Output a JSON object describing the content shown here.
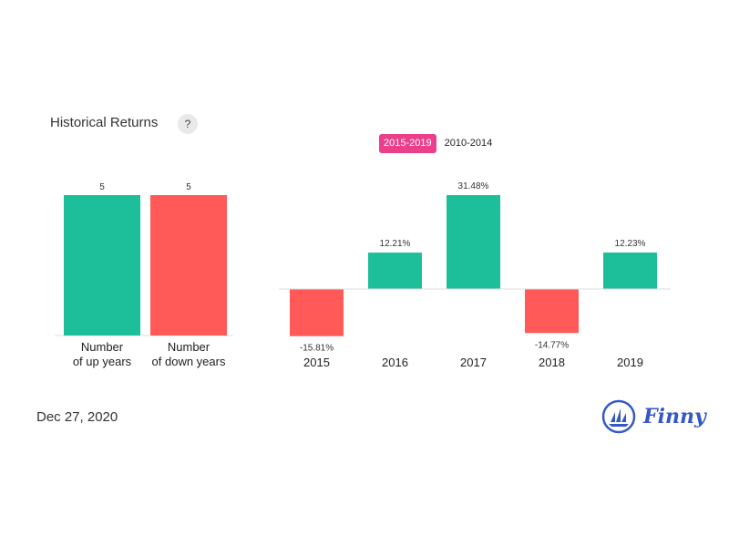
{
  "header": {
    "title": "Historical Returns",
    "help_label": "?"
  },
  "tabs": [
    {
      "label": "2015-2019",
      "active": true
    },
    {
      "label": "2010-2014",
      "active": false
    }
  ],
  "footer": {
    "date": "Dec 27, 2020",
    "logo_text": "Finny"
  },
  "colors": {
    "up": "#1dbf9b",
    "down": "#ff5a57",
    "active_tab": "#ea3f8b",
    "brand": "#3558c4"
  },
  "chart_data": [
    {
      "type": "bar",
      "categories": [
        [
          "Number",
          "of up years"
        ],
        [
          "Number",
          "of down years"
        ]
      ],
      "values": [
        5,
        5
      ],
      "data_labels": [
        "5",
        "5"
      ],
      "colors": [
        "#1dbf9b",
        "#ff5a57"
      ],
      "ylim": [
        0,
        5
      ],
      "title": "",
      "xlabel": "",
      "ylabel": ""
    },
    {
      "type": "bar",
      "categories": [
        "2015",
        "2016",
        "2017",
        "2018",
        "2019"
      ],
      "values": [
        -15.81,
        12.21,
        31.48,
        -14.77,
        12.23
      ],
      "data_labels": [
        "-15.81%",
        "12.21%",
        "31.48%",
        "-14.77%",
        "12.23%"
      ],
      "ylim": [
        -15.81,
        31.48
      ],
      "title": "",
      "xlabel": "",
      "ylabel": ""
    }
  ]
}
